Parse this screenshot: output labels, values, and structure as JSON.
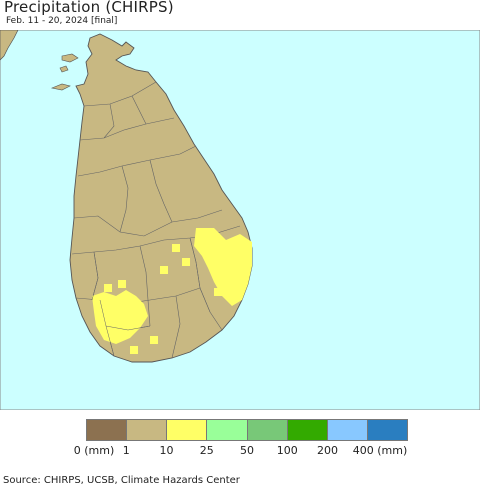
{
  "header": {
    "title": "Precipitation (CHIRPS)",
    "subtitle": "Feb. 11 - 20, 2024 [final]"
  },
  "map": {
    "ocean_color": "#ccffff",
    "land_color": "#c8b882",
    "border_color": "#555555",
    "rain_color": "#ffff66"
  },
  "legend": {
    "colors": [
      "#8c7150",
      "#c8b882",
      "#ffff66",
      "#99ff99",
      "#78c878",
      "#33aa00",
      "#88c8ff",
      "#2a7ec0"
    ],
    "ticks": [
      "0 (mm)",
      "1",
      "10",
      "25",
      "50",
      "100",
      "200",
      "400 (mm)"
    ]
  },
  "footer": {
    "source": "Source: CHIRPS, UCSB, Climate Hazards Center"
  }
}
